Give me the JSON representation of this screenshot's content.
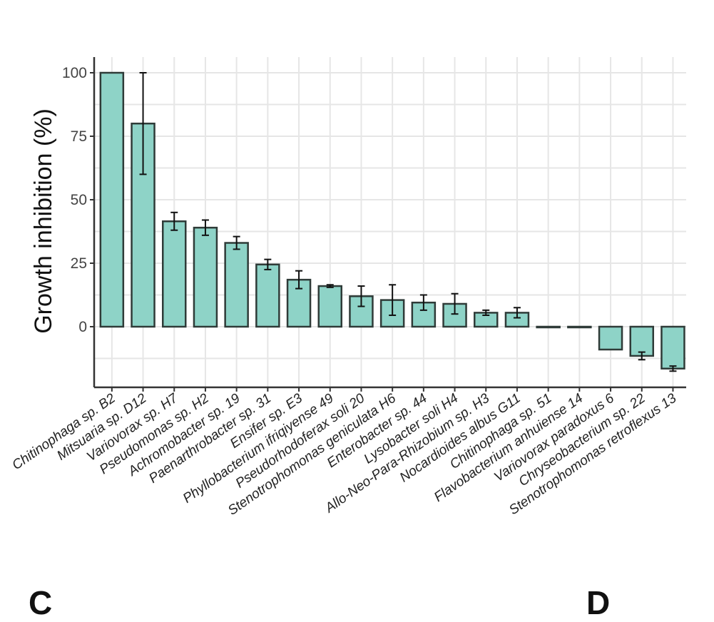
{
  "panels": {
    "left_letter": "C",
    "right_letter": "D"
  },
  "colors": {
    "bar_fill": "#8ed3c7",
    "bar_stroke": "#2f3b38",
    "grid": "#e6e6e6",
    "axis": "#333333",
    "error": "#111111"
  },
  "chart_data": {
    "type": "bar",
    "title": "",
    "xlabel": "",
    "ylabel": "Growth inhibition (%)",
    "ylim": [
      -24,
      111
    ],
    "yticks": [
      "0",
      "25",
      "50",
      "75",
      "100"
    ],
    "grid": true,
    "legend": "none",
    "categories": [
      "Chitinophaga sp. B2",
      "Mitsuaria sp. D12",
      "Variovorax sp. H7",
      "Pseudomonas sp. H2",
      "Achromobacter sp. 19",
      "Paenarthrobacter sp. 31",
      "Ensifer sp. E3",
      "Phyllobacterium ifriqiyense 49",
      "Pseudorhodoferax soli 20",
      "Stenotrophomonas geniculata H6",
      "Enterobacter sp. 44",
      "Lysobacter soli H4",
      "Allo-Neo-Para-Rhizobium sp. H3",
      "Nocardioides albus G11",
      "Chitinophaga sp. 51",
      "Flavobacterium anhuiense 14",
      "Variovorax paradoxus 6",
      "Chryseobacterium sp. 22",
      "Stenotrophomonas retroflexus 13"
    ],
    "values": [
      100,
      80,
      41.5,
      39,
      33,
      24.5,
      18.5,
      16,
      12,
      10.5,
      9.5,
      9,
      5.5,
      5.5,
      0,
      0,
      -9,
      -11.5,
      -16.5
    ],
    "error": [
      0,
      20,
      3.5,
      3,
      2.5,
      2,
      3.5,
      0.5,
      4,
      6,
      3,
      4,
      1,
      2,
      0,
      0,
      0,
      1.5,
      1
    ]
  }
}
